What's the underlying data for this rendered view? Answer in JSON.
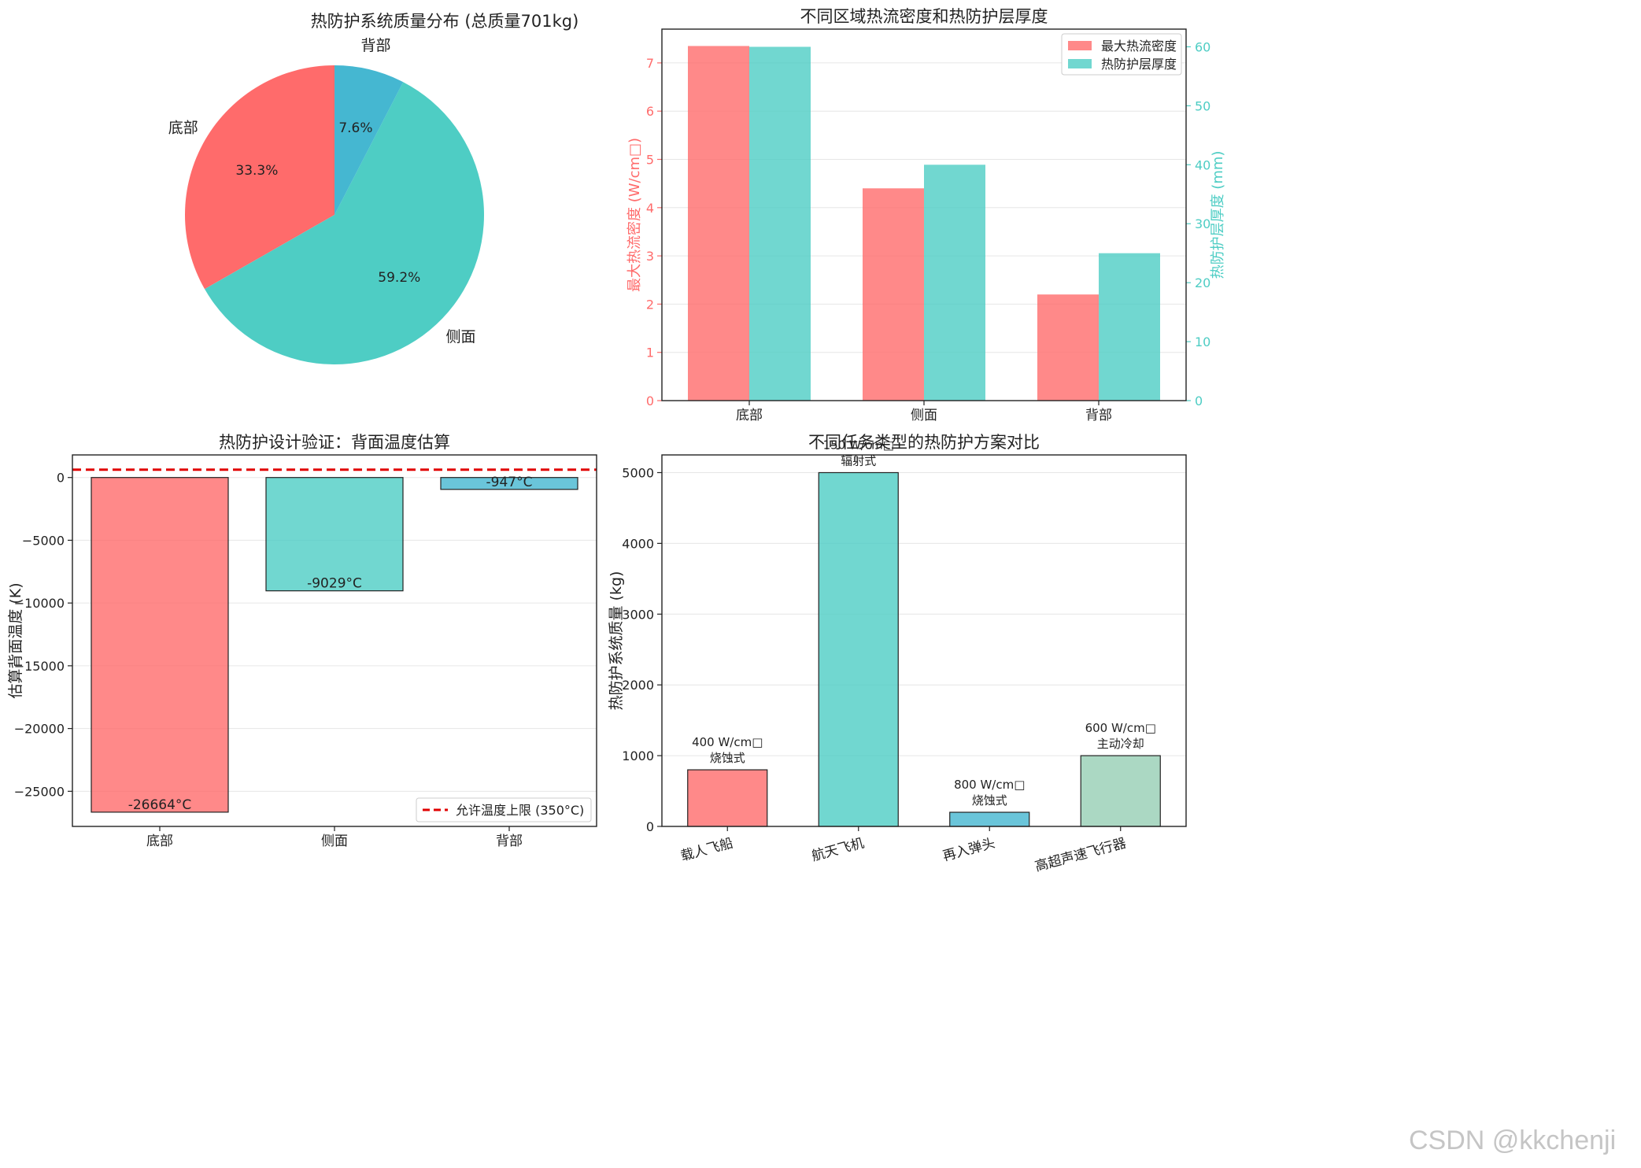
{
  "watermark": "CSDN @kkchenji",
  "chart_data": [
    {
      "type": "pie",
      "title": "热防护系统质量分布 (总质量701kg)",
      "categories": [
        "底部",
        "侧面",
        "背部"
      ],
      "values": [
        33.3,
        59.2,
        7.6
      ],
      "value_labels": [
        "33.3%",
        "59.2%",
        "7.6%"
      ],
      "colors": [
        "#ff6b6b",
        "#4ecdc4",
        "#45b7d1"
      ]
    },
    {
      "type": "bar",
      "title": "不同区域热流密度和热防护层厚度",
      "categories": [
        "底部",
        "侧面",
        "背部"
      ],
      "series": [
        {
          "name": "最大热流密度",
          "values": [
            7.35,
            4.4,
            2.2
          ],
          "color": "#ff6b6b",
          "axis": "left"
        },
        {
          "name": "热防护层厚度",
          "values": [
            60,
            40,
            25
          ],
          "color": "#4ecdc4",
          "axis": "right"
        }
      ],
      "ylabel": "最大热流密度 (W/cm□)",
      "y2label": "热防护层厚度 (mm)",
      "ylim": [
        0,
        7.7
      ],
      "y2lim": [
        0,
        63
      ],
      "yticks": [
        0,
        1,
        2,
        3,
        4,
        5,
        6,
        7
      ],
      "y2ticks": [
        0,
        10,
        20,
        30,
        40,
        50,
        60
      ],
      "legend": "top-right",
      "grid": true
    },
    {
      "type": "bar",
      "title": "热防护设计验证：背面温度估算",
      "categories": [
        "底部",
        "侧面",
        "背部"
      ],
      "values": [
        -26664,
        -9029,
        -947
      ],
      "value_labels": [
        "-26664°C",
        "-9029°C",
        "-947°C"
      ],
      "colors": [
        "#ff6b6b",
        "#4ecdc4",
        "#45b7d1"
      ],
      "ylabel": "估算背面温度 (K)",
      "ylim": [
        -27800,
        1800
      ],
      "yticks": [
        0,
        -5000,
        -10000,
        -15000,
        -20000,
        -25000
      ],
      "reference_line": {
        "value": 623,
        "label": "允许温度上限 (350°C)",
        "color": "#e00000"
      },
      "legend": "bottom-right",
      "grid": true
    },
    {
      "type": "bar",
      "title": "不同任务类型的热防护方案对比",
      "categories": [
        "载人飞船",
        "航天飞机",
        "再入弹头",
        "高超声速飞行器"
      ],
      "values": [
        800,
        5000,
        200,
        1000
      ],
      "annotations": [
        [
          "400 W/cm□",
          "烧蚀式"
        ],
        [
          "150 W/cm□",
          "辐射式"
        ],
        [
          "800 W/cm□",
          "烧蚀式"
        ],
        [
          "600 W/cm□",
          "主动冷却"
        ]
      ],
      "colors": [
        "#ff6b6b",
        "#4ecdc4",
        "#45b7d1",
        "#96ceb4"
      ],
      "ylabel": "热防护系统质量 (kg)",
      "ylim": [
        0,
        5250
      ],
      "yticks": [
        0,
        1000,
        2000,
        3000,
        4000,
        5000
      ],
      "grid": true
    }
  ]
}
